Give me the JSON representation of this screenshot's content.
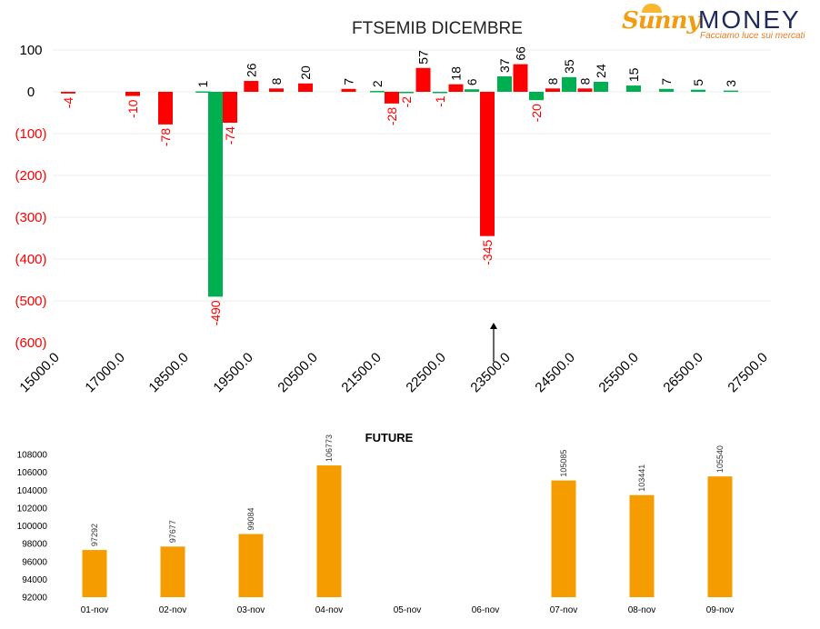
{
  "logo": {
    "brand_left": "Sunny",
    "brand_right": "MONEY",
    "tagline": "Facciamo luce sui mercati"
  },
  "colors": {
    "positive": "#00b050",
    "negative": "#ff0000",
    "future_bar": "#f59c00",
    "axis_text": "#000000",
    "negative_label": "#ff0000"
  },
  "chart_data": [
    {
      "type": "bar",
      "title": "FTSEMIB DICEMBRE",
      "x_tick_labels": [
        "15000.0",
        "17000.0",
        "18500.0",
        "19500.0",
        "20500.0",
        "21500.0",
        "22500.0",
        "23500.0",
        "24500.0",
        "25500.0",
        "26500.0",
        "27500.0"
      ],
      "y_tick_labels": [
        "100",
        "0",
        "(100)",
        "(200)",
        "(300)",
        "(400)",
        "(500)",
        "(600)"
      ],
      "ylim": [
        -600,
        100
      ],
      "grid": true,
      "annotation": "arrow pointing up at 23500.0",
      "bars": [
        {
          "strike": 15000,
          "value": -4,
          "color": "negative"
        },
        {
          "strike": 17000,
          "value": -10,
          "color": "negative"
        },
        {
          "strike": 18000,
          "value": -78,
          "color": "negative"
        },
        {
          "strike": 18750,
          "value": 1,
          "color": "positive"
        },
        {
          "strike": 19000,
          "value": -490,
          "color": "positive"
        },
        {
          "strike": 19250,
          "value": -74,
          "color": "negative"
        },
        {
          "strike": 19750,
          "value": 26,
          "color": "negative"
        },
        {
          "strike": 20250,
          "value": 8,
          "color": "negative"
        },
        {
          "strike": 20750,
          "value": 20,
          "color": "negative"
        },
        {
          "strike": 21250,
          "value": 7,
          "color": "negative"
        },
        {
          "strike": 21500,
          "value": 2,
          "color": "positive"
        },
        {
          "strike": 21750,
          "value": -28,
          "color": "negative"
        },
        {
          "strike": 22000,
          "value": -2,
          "color": "positive"
        },
        {
          "strike": 22250,
          "value": 57,
          "color": "negative"
        },
        {
          "strike": 22500,
          "value": -1,
          "color": "positive"
        },
        {
          "strike": 22750,
          "value": 18,
          "color": "negative"
        },
        {
          "strike": 23000,
          "value": 6,
          "color": "positive"
        },
        {
          "strike": 23250,
          "value": -345,
          "color": "negative"
        },
        {
          "strike": 23500,
          "value": 37,
          "color": "positive"
        },
        {
          "strike": 23750,
          "value": 66,
          "color": "negative"
        },
        {
          "strike": 24000,
          "value": -20,
          "color": "positive"
        },
        {
          "strike": 24250,
          "value": 8,
          "color": "negative"
        },
        {
          "strike": 24500,
          "value": 35,
          "color": "positive"
        },
        {
          "strike": 24750,
          "value": 8,
          "color": "negative"
        },
        {
          "strike": 25000,
          "value": 24,
          "color": "positive"
        },
        {
          "strike": 25500,
          "value": 15,
          "color": "positive"
        },
        {
          "strike": 26000,
          "value": 7,
          "color": "positive"
        },
        {
          "strike": 26500,
          "value": 5,
          "color": "positive"
        },
        {
          "strike": 27000,
          "value": 3,
          "color": "positive"
        }
      ]
    },
    {
      "type": "bar",
      "title": "FUTURE",
      "categories": [
        "01-nov",
        "02-nov",
        "03-nov",
        "04-nov",
        "05-nov",
        "06-nov",
        "07-nov",
        "08-nov",
        "09-nov"
      ],
      "values": [
        97292,
        97677,
        99084,
        106773,
        null,
        null,
        105085,
        103441,
        105540
      ],
      "value_labels": [
        "97292",
        "97677",
        "99084",
        "106773",
        "",
        "",
        "105085",
        "103441",
        "105540"
      ],
      "y_tick_labels": [
        "108000",
        "106000",
        "104000",
        "102000",
        "100000",
        "98000",
        "96000",
        "94000",
        "92000"
      ],
      "ylim": [
        92000,
        108000
      ],
      "grid": false
    }
  ]
}
